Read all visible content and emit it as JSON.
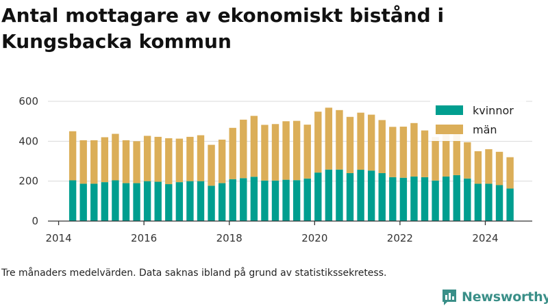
{
  "header": {
    "title": "Antal mottagare av ekonomiskt bistånd i Kungsbacka kommun"
  },
  "footer": {
    "caption": "Tre månaders medelvärden. Data saknas ibland på grund av statistikssekretess.",
    "brand": "Newsworthy"
  },
  "colors": {
    "kvinnor": "#009e8f",
    "man": "#dbae58",
    "axis": "#333333",
    "grid": "#d8d8d8",
    "brand": "#3a8f88"
  },
  "chart_data": {
    "type": "bar",
    "stacked": true,
    "title": "Antal mottagare av ekonomiskt bistånd i Kungsbacka kommun",
    "xlabel": "",
    "ylabel": "",
    "xlim": [
      2013.75,
      2025.1
    ],
    "ylim": [
      0,
      600
    ],
    "x_ticks": [
      {
        "value": 2014,
        "label": "2014"
      },
      {
        "value": 2016,
        "label": "2016"
      },
      {
        "value": 2018,
        "label": "2018"
      },
      {
        "value": 2020,
        "label": "2020"
      },
      {
        "value": 2022,
        "label": "2022"
      },
      {
        "value": 2024,
        "label": "2024"
      }
    ],
    "y_ticks": [
      {
        "value": 0,
        "label": "0"
      },
      {
        "value": 200,
        "label": "200"
      },
      {
        "value": 400,
        "label": "400"
      },
      {
        "value": 600,
        "label": "600"
      }
    ],
    "grid": true,
    "legend": {
      "position": "top-right",
      "entries": [
        {
          "key": "kvinnor",
          "label": "kvinnor"
        },
        {
          "key": "man",
          "label": "män"
        }
      ]
    },
    "x": [
      2014.33,
      2014.58,
      2014.83,
      2015.08,
      2015.33,
      2015.58,
      2015.83,
      2016.08,
      2016.33,
      2016.58,
      2016.83,
      2017.08,
      2017.33,
      2017.58,
      2017.83,
      2018.08,
      2018.33,
      2018.58,
      2018.83,
      2019.08,
      2019.33,
      2019.58,
      2019.83,
      2020.08,
      2020.33,
      2020.58,
      2020.83,
      2021.08,
      2021.33,
      2021.58,
      2021.83,
      2022.08,
      2022.33,
      2022.58,
      2022.83,
      2023.08,
      2023.33,
      2023.58,
      2023.83,
      2024.08,
      2024.33,
      2024.58
    ],
    "series": [
      {
        "name": "kvinnor",
        "values": [
          204,
          187,
          187,
          195,
          204,
          190,
          190,
          200,
          197,
          185,
          195,
          200,
          200,
          177,
          190,
          210,
          215,
          222,
          203,
          203,
          207,
          205,
          213,
          243,
          258,
          258,
          240,
          257,
          253,
          240,
          220,
          217,
          223,
          220,
          203,
          223,
          230,
          213,
          187,
          187,
          180,
          163
        ]
      },
      {
        "name": "män",
        "values": [
          246,
          218,
          218,
          225,
          233,
          215,
          210,
          227,
          225,
          230,
          218,
          222,
          230,
          205,
          218,
          257,
          293,
          305,
          279,
          283,
          293,
          297,
          270,
          305,
          310,
          298,
          282,
          286,
          280,
          266,
          252,
          256,
          268,
          234,
          218,
          217,
          207,
          182,
          163,
          173,
          167,
          157
        ]
      }
    ]
  }
}
